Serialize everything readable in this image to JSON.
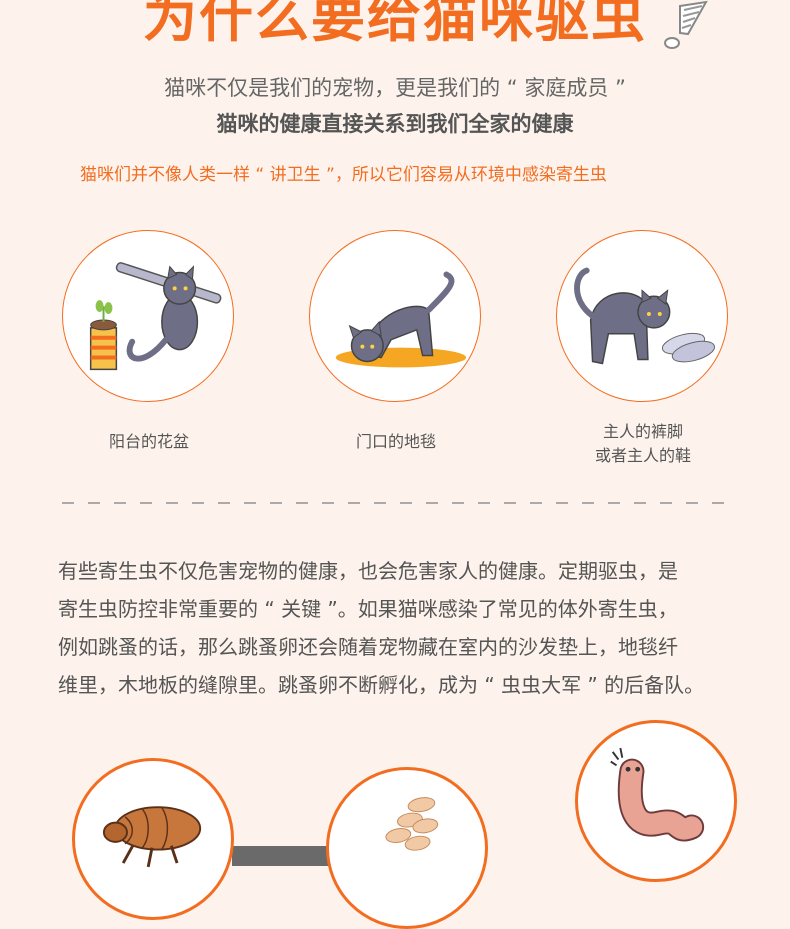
{
  "heading": {
    "title": "为什么要给猫咪驱虫",
    "line1": "猫咪不仅是我们的宠物，更是我们的 “ 家庭成员 ”",
    "line2": "猫咪的健康直接关系到我们全家的健康",
    "line3": "猫咪们并不像人类一样 “ 讲卫生 ”，所以它们容易从环境中感染寄生虫"
  },
  "places": [
    {
      "label_line1": "阳台的花盆",
      "label_line2": "",
      "icon": "cat-on-flowerpot-icon"
    },
    {
      "label_line1": "门口的地毯",
      "label_line2": "",
      "icon": "cat-on-rug-icon"
    },
    {
      "label_line1": "主人的裤脚",
      "label_line2": "或者主人的鞋",
      "icon": "cat-with-slippers-icon"
    }
  ],
  "paragraph": {
    "line1": "有些寄生虫不仅危害宠物的健康，也会危害家人的健康。定期驱虫，是",
    "line2": "寄生虫防控非常重要的 “ 关键 ”。如果猫咪感染了常见的体外寄生虫，",
    "line3": "例如跳蚤的话，那么跳蚤卵还会随着宠物藏在室内的沙发垫上，地毯纤",
    "line4": "维里，木地板的缝隙里。跳蚤卵不断孵化，成为 “ 虫虫大军 ” 的后备队。"
  },
  "bottom_icons": [
    "flea-icon",
    "flea-eggs-icon",
    "worm-icon"
  ],
  "colors": {
    "accent": "#f36d21",
    "background": "#fdf3ec",
    "cat": "#6e6f86"
  }
}
